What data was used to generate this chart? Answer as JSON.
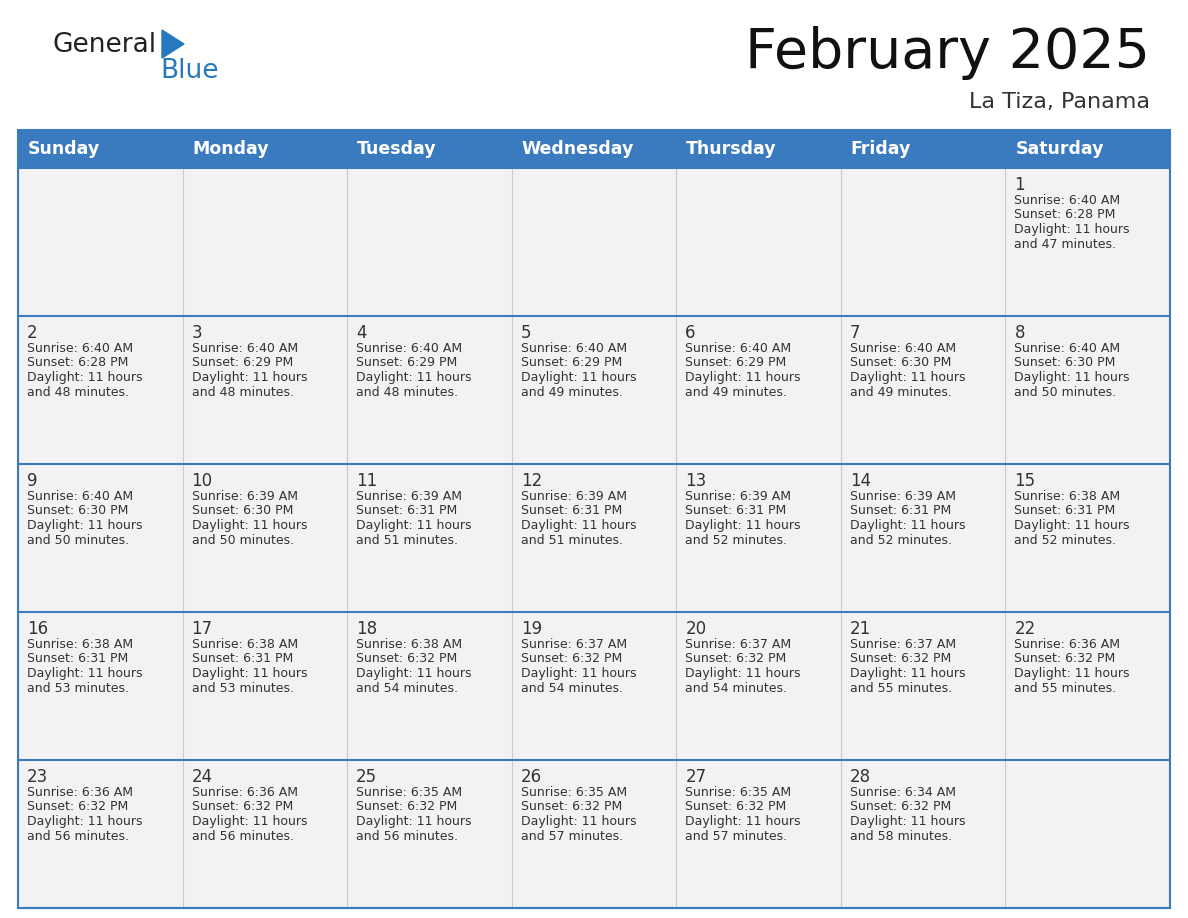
{
  "title": "February 2025",
  "subtitle": "La Tiza, Panama",
  "days_of_week": [
    "Sunday",
    "Monday",
    "Tuesday",
    "Wednesday",
    "Thursday",
    "Friday",
    "Saturday"
  ],
  "header_bg": "#3a7abf",
  "header_text": "#ffffff",
  "row_bg": "#eeeeee",
  "cell_bg": "#f2f2f2",
  "border_color": "#3a7abf",
  "divider_color": "#3a7abf",
  "vert_divider_color": "#cccccc",
  "day_number_color": "#333333",
  "text_color": "#333333",
  "logo_general_color": "#222222",
  "logo_blue_color": "#2878be",
  "calendar_data": [
    {
      "day": 1,
      "col": 6,
      "row": 0,
      "sunrise": "6:40 AM",
      "sunset": "6:28 PM",
      "daylight": "11 hours and 47 minutes"
    },
    {
      "day": 2,
      "col": 0,
      "row": 1,
      "sunrise": "6:40 AM",
      "sunset": "6:28 PM",
      "daylight": "11 hours and 48 minutes"
    },
    {
      "day": 3,
      "col": 1,
      "row": 1,
      "sunrise": "6:40 AM",
      "sunset": "6:29 PM",
      "daylight": "11 hours and 48 minutes"
    },
    {
      "day": 4,
      "col": 2,
      "row": 1,
      "sunrise": "6:40 AM",
      "sunset": "6:29 PM",
      "daylight": "11 hours and 48 minutes"
    },
    {
      "day": 5,
      "col": 3,
      "row": 1,
      "sunrise": "6:40 AM",
      "sunset": "6:29 PM",
      "daylight": "11 hours and 49 minutes"
    },
    {
      "day": 6,
      "col": 4,
      "row": 1,
      "sunrise": "6:40 AM",
      "sunset": "6:29 PM",
      "daylight": "11 hours and 49 minutes"
    },
    {
      "day": 7,
      "col": 5,
      "row": 1,
      "sunrise": "6:40 AM",
      "sunset": "6:30 PM",
      "daylight": "11 hours and 49 minutes"
    },
    {
      "day": 8,
      "col": 6,
      "row": 1,
      "sunrise": "6:40 AM",
      "sunset": "6:30 PM",
      "daylight": "11 hours and 50 minutes"
    },
    {
      "day": 9,
      "col": 0,
      "row": 2,
      "sunrise": "6:40 AM",
      "sunset": "6:30 PM",
      "daylight": "11 hours and 50 minutes"
    },
    {
      "day": 10,
      "col": 1,
      "row": 2,
      "sunrise": "6:39 AM",
      "sunset": "6:30 PM",
      "daylight": "11 hours and 50 minutes"
    },
    {
      "day": 11,
      "col": 2,
      "row": 2,
      "sunrise": "6:39 AM",
      "sunset": "6:31 PM",
      "daylight": "11 hours and 51 minutes"
    },
    {
      "day": 12,
      "col": 3,
      "row": 2,
      "sunrise": "6:39 AM",
      "sunset": "6:31 PM",
      "daylight": "11 hours and 51 minutes"
    },
    {
      "day": 13,
      "col": 4,
      "row": 2,
      "sunrise": "6:39 AM",
      "sunset": "6:31 PM",
      "daylight": "11 hours and 52 minutes"
    },
    {
      "day": 14,
      "col": 5,
      "row": 2,
      "sunrise": "6:39 AM",
      "sunset": "6:31 PM",
      "daylight": "11 hours and 52 minutes"
    },
    {
      "day": 15,
      "col": 6,
      "row": 2,
      "sunrise": "6:38 AM",
      "sunset": "6:31 PM",
      "daylight": "11 hours and 52 minutes"
    },
    {
      "day": 16,
      "col": 0,
      "row": 3,
      "sunrise": "6:38 AM",
      "sunset": "6:31 PM",
      "daylight": "11 hours and 53 minutes"
    },
    {
      "day": 17,
      "col": 1,
      "row": 3,
      "sunrise": "6:38 AM",
      "sunset": "6:31 PM",
      "daylight": "11 hours and 53 minutes"
    },
    {
      "day": 18,
      "col": 2,
      "row": 3,
      "sunrise": "6:38 AM",
      "sunset": "6:32 PM",
      "daylight": "11 hours and 54 minutes"
    },
    {
      "day": 19,
      "col": 3,
      "row": 3,
      "sunrise": "6:37 AM",
      "sunset": "6:32 PM",
      "daylight": "11 hours and 54 minutes"
    },
    {
      "day": 20,
      "col": 4,
      "row": 3,
      "sunrise": "6:37 AM",
      "sunset": "6:32 PM",
      "daylight": "11 hours and 54 minutes"
    },
    {
      "day": 21,
      "col": 5,
      "row": 3,
      "sunrise": "6:37 AM",
      "sunset": "6:32 PM",
      "daylight": "11 hours and 55 minutes"
    },
    {
      "day": 22,
      "col": 6,
      "row": 3,
      "sunrise": "6:36 AM",
      "sunset": "6:32 PM",
      "daylight": "11 hours and 55 minutes"
    },
    {
      "day": 23,
      "col": 0,
      "row": 4,
      "sunrise": "6:36 AM",
      "sunset": "6:32 PM",
      "daylight": "11 hours and 56 minutes"
    },
    {
      "day": 24,
      "col": 1,
      "row": 4,
      "sunrise": "6:36 AM",
      "sunset": "6:32 PM",
      "daylight": "11 hours and 56 minutes"
    },
    {
      "day": 25,
      "col": 2,
      "row": 4,
      "sunrise": "6:35 AM",
      "sunset": "6:32 PM",
      "daylight": "11 hours and 56 minutes"
    },
    {
      "day": 26,
      "col": 3,
      "row": 4,
      "sunrise": "6:35 AM",
      "sunset": "6:32 PM",
      "daylight": "11 hours and 57 minutes"
    },
    {
      "day": 27,
      "col": 4,
      "row": 4,
      "sunrise": "6:35 AM",
      "sunset": "6:32 PM",
      "daylight": "11 hours and 57 minutes"
    },
    {
      "day": 28,
      "col": 5,
      "row": 4,
      "sunrise": "6:34 AM",
      "sunset": "6:32 PM",
      "daylight": "11 hours and 58 minutes"
    }
  ]
}
